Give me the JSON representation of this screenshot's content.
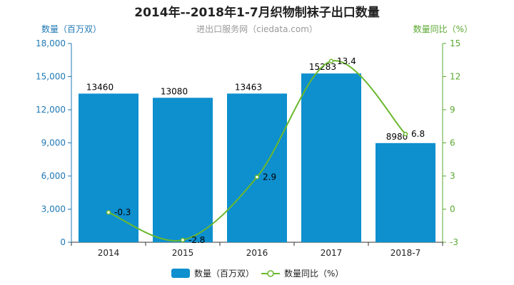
{
  "chart_data": {
    "type": "bar",
    "title": "2014年--2018年1-7月织物制袜子出口数量",
    "subtitle": "进出口服务网（ciedata.com）",
    "categories": [
      "2014",
      "2015",
      "2016",
      "2017",
      "2018-7"
    ],
    "series": [
      {
        "name": "数量（百万双）",
        "type": "bar",
        "axis": "left",
        "values": [
          13460,
          13080,
          13463,
          15283,
          8980
        ]
      },
      {
        "name": "数量同比（%）",
        "type": "line",
        "axis": "right",
        "values": [
          -0.3,
          -2.8,
          2.9,
          13.4,
          6.8
        ]
      }
    ],
    "left_axis": {
      "label": "数量（百万双）",
      "ylim": [
        0,
        18000
      ],
      "ticks": [
        "0",
        "3,000",
        "6,000",
        "9,000",
        "12,000",
        "15,000",
        "18,000"
      ]
    },
    "right_axis": {
      "label": "数量同比（%）",
      "ylim": [
        -3,
        15
      ],
      "ticks": [
        "-3",
        "0",
        "3",
        "6",
        "9",
        "12",
        "15"
      ]
    },
    "legend_position": "bottom",
    "grid": false
  },
  "colors": {
    "bar": "#0e8fce",
    "line": "#6ab82e",
    "left_axis": "#1f78b4",
    "right_axis": "#5aa832",
    "text": "#000000",
    "subtitle": "#999999"
  }
}
